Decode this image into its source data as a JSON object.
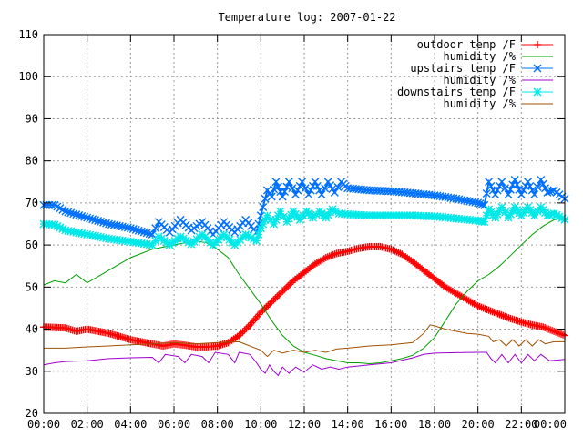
{
  "chart_data": {
    "type": "line",
    "title": "Temperature log: 2007-01-22",
    "xlim": [
      0,
      24
    ],
    "ylim": [
      20,
      110
    ],
    "x_ticks": [
      "00:00",
      "02:00",
      "04:00",
      "06:00",
      "08:00",
      "10:00",
      "12:00",
      "14:00",
      "16:00",
      "18:00",
      "20:00",
      "22:00",
      "00:00"
    ],
    "y_ticks": [
      "20",
      "30",
      "40",
      "50",
      "60",
      "70",
      "80",
      "90",
      "100",
      "110"
    ],
    "grid": true,
    "legend_position": "top-right",
    "series": [
      {
        "name": "outdoor temp /F",
        "color": "#ff0000",
        "marker": "plus",
        "points": [
          [
            0,
            40.5
          ],
          [
            1,
            40.3
          ],
          [
            1.5,
            39.5
          ],
          [
            2,
            40
          ],
          [
            3,
            39
          ],
          [
            4,
            37.5
          ],
          [
            5,
            36.5
          ],
          [
            5.5,
            36
          ],
          [
            6,
            36.5
          ],
          [
            6.5,
            36.2
          ],
          [
            7,
            35.8
          ],
          [
            7.5,
            35.8
          ],
          [
            8,
            36
          ],
          [
            8.5,
            36.8
          ],
          [
            9,
            38.5
          ],
          [
            9.5,
            41
          ],
          [
            10,
            44
          ],
          [
            10.5,
            46.5
          ],
          [
            11,
            49
          ],
          [
            11.5,
            51.5
          ],
          [
            12,
            53.5
          ],
          [
            12.5,
            55.5
          ],
          [
            13,
            57
          ],
          [
            13.5,
            58
          ],
          [
            14,
            58.5
          ],
          [
            14.5,
            59.2
          ],
          [
            15,
            59.6
          ],
          [
            15.5,
            59.6
          ],
          [
            16,
            59
          ],
          [
            16.5,
            57.8
          ],
          [
            17,
            56
          ],
          [
            17.5,
            54
          ],
          [
            18,
            52
          ],
          [
            18.5,
            50
          ],
          [
            19,
            48.5
          ],
          [
            19.5,
            47
          ],
          [
            20,
            45.5
          ],
          [
            20.5,
            44.5
          ],
          [
            21,
            43.5
          ],
          [
            21.5,
            42.5
          ],
          [
            22,
            41.7
          ],
          [
            22.5,
            41
          ],
          [
            23,
            40.5
          ],
          [
            23.5,
            39.5
          ],
          [
            24,
            38.5
          ]
        ]
      },
      {
        "name": "humidity /%",
        "color": "#00a000",
        "marker": "none",
        "points": [
          [
            0,
            50.5
          ],
          [
            0.5,
            51.5
          ],
          [
            1,
            51
          ],
          [
            1.5,
            53
          ],
          [
            2,
            51
          ],
          [
            2.5,
            52.5
          ],
          [
            3,
            54
          ],
          [
            3.5,
            55.5
          ],
          [
            4,
            57
          ],
          [
            4.5,
            58
          ],
          [
            5,
            59
          ],
          [
            5.5,
            59.5
          ],
          [
            6,
            60
          ],
          [
            6.5,
            60.5
          ],
          [
            7,
            61
          ],
          [
            7.5,
            60.5
          ],
          [
            8,
            59
          ],
          [
            8.5,
            57
          ],
          [
            9,
            53
          ],
          [
            9.5,
            49.5
          ],
          [
            10,
            46
          ],
          [
            10.5,
            42
          ],
          [
            11,
            38.5
          ],
          [
            11.5,
            36
          ],
          [
            12,
            34.5
          ],
          [
            12.5,
            33.8
          ],
          [
            13,
            33
          ],
          [
            13.5,
            32.5
          ],
          [
            14,
            32
          ],
          [
            14.5,
            32
          ],
          [
            15,
            31.8
          ],
          [
            15.5,
            32
          ],
          [
            16,
            32.5
          ],
          [
            16.5,
            33
          ],
          [
            17,
            33.8
          ],
          [
            17.5,
            35.5
          ],
          [
            18,
            38
          ],
          [
            18.5,
            42
          ],
          [
            19,
            46
          ],
          [
            19.5,
            49
          ],
          [
            20,
            51.5
          ],
          [
            20.5,
            53
          ],
          [
            21,
            55
          ],
          [
            21.5,
            57.5
          ],
          [
            22,
            60
          ],
          [
            22.5,
            62.5
          ],
          [
            23,
            64.5
          ],
          [
            23.5,
            66
          ],
          [
            24,
            66.5
          ]
        ]
      },
      {
        "name": "upstairs temp /F",
        "color": "#0070ff",
        "marker": "cross",
        "points": [
          [
            0,
            69.5
          ],
          [
            0.5,
            69.5
          ],
          [
            1,
            68
          ],
          [
            2,
            66.5
          ],
          [
            3,
            65
          ],
          [
            4,
            64
          ],
          [
            5,
            62.5
          ],
          [
            5.3,
            65.5
          ],
          [
            5.8,
            63
          ],
          [
            6.3,
            66
          ],
          [
            6.8,
            63.5
          ],
          [
            7.3,
            65.5
          ],
          [
            7.8,
            62.5
          ],
          [
            8.3,
            65.5
          ],
          [
            8.8,
            63
          ],
          [
            9.3,
            66
          ],
          [
            9.8,
            63
          ],
          [
            10,
            67
          ],
          [
            10.3,
            73
          ],
          [
            10.5,
            71.5
          ],
          [
            10.7,
            75
          ],
          [
            11,
            71.5
          ],
          [
            11.3,
            75
          ],
          [
            11.6,
            72
          ],
          [
            11.9,
            75
          ],
          [
            12.2,
            72
          ],
          [
            12.5,
            75
          ],
          [
            12.8,
            72
          ],
          [
            13.1,
            75
          ],
          [
            13.4,
            72.5
          ],
          [
            13.7,
            75
          ],
          [
            14,
            73.5
          ],
          [
            15,
            73
          ],
          [
            16,
            72.8
          ],
          [
            17,
            72.3
          ],
          [
            18,
            71.8
          ],
          [
            19,
            71
          ],
          [
            20,
            70
          ],
          [
            20.3,
            69.5
          ],
          [
            20.5,
            75
          ],
          [
            20.8,
            72
          ],
          [
            21.1,
            75
          ],
          [
            21.4,
            72
          ],
          [
            21.7,
            75.5
          ],
          [
            22,
            72
          ],
          [
            22.3,
            75
          ],
          [
            22.6,
            72
          ],
          [
            22.9,
            75.5
          ],
          [
            23.2,
            72.5
          ],
          [
            23.5,
            73
          ],
          [
            24,
            71
          ]
        ]
      },
      {
        "name": "humidity /%",
        "color": "#a000d0",
        "marker": "none",
        "points": [
          [
            0,
            31.5
          ],
          [
            0.5,
            32
          ],
          [
            1,
            32.3
          ],
          [
            2,
            32.5
          ],
          [
            3,
            33
          ],
          [
            4,
            33.2
          ],
          [
            5,
            33.3
          ],
          [
            5.3,
            32
          ],
          [
            5.6,
            34
          ],
          [
            6.2,
            33.5
          ],
          [
            6.5,
            32
          ],
          [
            6.8,
            34
          ],
          [
            7.3,
            33.5
          ],
          [
            7.6,
            32
          ],
          [
            7.9,
            34.5
          ],
          [
            8.5,
            34
          ],
          [
            8.8,
            32
          ],
          [
            9,
            34.5
          ],
          [
            9.5,
            34
          ],
          [
            9.8,
            32
          ],
          [
            10,
            30.5
          ],
          [
            10.2,
            29.5
          ],
          [
            10.4,
            31.5
          ],
          [
            10.6,
            30
          ],
          [
            10.8,
            29
          ],
          [
            11,
            31
          ],
          [
            11.3,
            29.5
          ],
          [
            11.6,
            31
          ],
          [
            12,
            29.8
          ],
          [
            12.4,
            31.5
          ],
          [
            12.8,
            30.5
          ],
          [
            13.2,
            31
          ],
          [
            13.6,
            30.5
          ],
          [
            14,
            31
          ],
          [
            15,
            31.5
          ],
          [
            16,
            32
          ],
          [
            17,
            33.2
          ],
          [
            17.5,
            34
          ],
          [
            18,
            34.3
          ],
          [
            19,
            34.4
          ],
          [
            20,
            34.5
          ],
          [
            20.4,
            34.5
          ],
          [
            20.6,
            33
          ],
          [
            20.8,
            32
          ],
          [
            21.1,
            34
          ],
          [
            21.4,
            32
          ],
          [
            21.7,
            34
          ],
          [
            22,
            32
          ],
          [
            22.3,
            34
          ],
          [
            22.6,
            32.5
          ],
          [
            22.9,
            34
          ],
          [
            23.3,
            32.5
          ],
          [
            24,
            32.8
          ]
        ]
      },
      {
        "name": "downstairs temp /F",
        "color": "#00e8e8",
        "marker": "star",
        "points": [
          [
            0,
            65
          ],
          [
            0.5,
            64.8
          ],
          [
            1,
            63.5
          ],
          [
            2,
            62.5
          ],
          [
            3,
            61.5
          ],
          [
            4,
            60.8
          ],
          [
            5,
            60
          ],
          [
            5.3,
            62
          ],
          [
            5.8,
            60
          ],
          [
            6.3,
            62
          ],
          [
            6.8,
            60.2
          ],
          [
            7.3,
            62.5
          ],
          [
            7.8,
            60
          ],
          [
            8.3,
            62.5
          ],
          [
            8.8,
            60
          ],
          [
            9.3,
            62.5
          ],
          [
            9.8,
            61
          ],
          [
            10,
            64
          ],
          [
            10.3,
            67
          ],
          [
            10.6,
            65
          ],
          [
            10.9,
            68
          ],
          [
            11.2,
            65.5
          ],
          [
            11.5,
            68
          ],
          [
            11.8,
            66
          ],
          [
            12.1,
            68
          ],
          [
            12.4,
            66.5
          ],
          [
            12.7,
            68
          ],
          [
            13,
            66.5
          ],
          [
            13.3,
            68.5
          ],
          [
            13.6,
            67.5
          ],
          [
            14,
            67.3
          ],
          [
            15,
            67
          ],
          [
            16,
            67
          ],
          [
            17,
            67
          ],
          [
            18,
            66.8
          ],
          [
            19,
            66.3
          ],
          [
            20,
            65.8
          ],
          [
            20.3,
            65.5
          ],
          [
            20.5,
            68.5
          ],
          [
            20.8,
            66.5
          ],
          [
            21.1,
            69
          ],
          [
            21.4,
            66.5
          ],
          [
            21.7,
            69
          ],
          [
            22,
            67
          ],
          [
            22.3,
            69
          ],
          [
            22.6,
            67
          ],
          [
            22.9,
            69
          ],
          [
            23.2,
            67
          ],
          [
            23.5,
            67.5
          ],
          [
            24,
            66
          ]
        ]
      },
      {
        "name": "humidity /%",
        "color": "#a05000",
        "marker": "none",
        "points": [
          [
            0,
            35.5
          ],
          [
            1,
            35.5
          ],
          [
            2,
            35.8
          ],
          [
            3,
            36
          ],
          [
            4,
            36.3
          ],
          [
            5,
            36.5
          ],
          [
            6,
            36.8
          ],
          [
            7,
            36.5
          ],
          [
            8,
            36.8
          ],
          [
            9,
            37
          ],
          [
            10,
            35
          ],
          [
            10.3,
            33.5
          ],
          [
            10.6,
            35
          ],
          [
            11,
            34.3
          ],
          [
            11.5,
            35
          ],
          [
            12,
            34.5
          ],
          [
            12.5,
            35
          ],
          [
            13,
            34.5
          ],
          [
            13.5,
            35.3
          ],
          [
            14,
            35.5
          ],
          [
            15,
            36
          ],
          [
            16,
            36.3
          ],
          [
            17,
            36.8
          ],
          [
            17.5,
            39
          ],
          [
            17.8,
            41
          ],
          [
            18,
            40.8
          ],
          [
            18.5,
            40
          ],
          [
            19,
            39.5
          ],
          [
            19.5,
            39
          ],
          [
            20,
            38.8
          ],
          [
            20.5,
            38.3
          ],
          [
            20.7,
            37
          ],
          [
            21,
            37.5
          ],
          [
            21.3,
            36
          ],
          [
            21.6,
            37.5
          ],
          [
            21.9,
            36
          ],
          [
            22.2,
            37.5
          ],
          [
            22.5,
            36
          ],
          [
            22.8,
            37.5
          ],
          [
            23.1,
            36.5
          ],
          [
            23.5,
            37
          ],
          [
            24,
            37
          ]
        ]
      }
    ]
  }
}
